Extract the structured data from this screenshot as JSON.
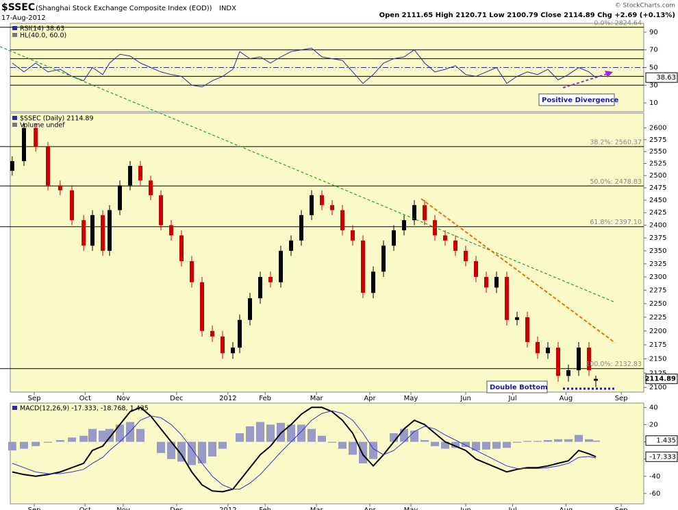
{
  "header": {
    "symbol": "$SSEC",
    "name": "(Shanghai Stock Exchange Composite Index (EOD))",
    "exchange": "INDX",
    "date": "17-Aug-2012",
    "quote": "Open 2111.65  High 2120.71  Low 2100.79  Close 2114.89  Chg +2.69 (+0.13%)",
    "copyright": "© StockCharts.com"
  },
  "chart_data": [
    {
      "type": "line",
      "legend": [
        "RSI(14) 38.63",
        "HL(40.0, 60.0)"
      ],
      "color": "#2a2a9a",
      "background": "#fafac8",
      "xlim": [
        8.51,
        21.46
      ],
      "ylim": [
        0,
        100
      ],
      "yticks": [
        10,
        30,
        50,
        70,
        90
      ],
      "levels": [
        30,
        40,
        60,
        70
      ],
      "center_level": 50,
      "annotations": [
        "Positive Divergence"
      ],
      "x": [
        8.55,
        8.79,
        9.03,
        9.28,
        9.53,
        9.77,
        10.01,
        10.19,
        10.4,
        10.54,
        10.75,
        10.96,
        11.17,
        11.38,
        11.59,
        11.8,
        12.01,
        12.22,
        12.43,
        12.64,
        12.85,
        13.06,
        13.2,
        13.41,
        13.62,
        13.83,
        14.04,
        14.25,
        14.46,
        14.67,
        14.88,
        15.09,
        15.3,
        15.51,
        15.72,
        15.93,
        16.14,
        16.35,
        16.56,
        16.77,
        16.98,
        17.19,
        17.4,
        17.61,
        17.82,
        18.03,
        18.24,
        18.45,
        18.66,
        18.87,
        19.08,
        19.29,
        19.5,
        19.71,
        19.92,
        20.13,
        20.34,
        20.48
      ],
      "values": [
        55,
        45,
        55,
        45,
        48,
        40,
        35,
        50,
        42,
        55,
        65,
        63,
        55,
        50,
        45,
        42,
        40,
        30,
        28,
        35,
        40,
        48,
        68,
        60,
        62,
        55,
        62,
        68,
        70,
        72,
        62,
        60,
        58,
        45,
        32,
        42,
        55,
        60,
        62,
        70,
        55,
        45,
        48,
        52,
        42,
        40,
        45,
        50,
        32,
        40,
        45,
        42,
        48,
        36,
        42,
        50,
        45,
        38.63
      ]
    },
    {
      "type": "candlestick",
      "legend": [
        "$SSEC (Daily) 2114.89",
        "Volume undef"
      ],
      "up_color": "#000000",
      "down_color": "#cc0000",
      "background": "#fafac8",
      "log": true,
      "xlim": [
        8.51,
        21.46
      ],
      "ylim": [
        2092,
        2632
      ],
      "yticks": [
        2100,
        2125,
        2150,
        2175,
        2200,
        2225,
        2250,
        2275,
        2300,
        2325,
        2350,
        2375,
        2400,
        2425,
        2450,
        2475,
        2500,
        2525,
        2550,
        2575,
        2600
      ],
      "xticks": [
        {
          "value": 9,
          "label": "Sep"
        },
        {
          "value": 10.04,
          "label": "Oct"
        },
        {
          "value": 10.82,
          "label": "Nov"
        },
        {
          "value": 11.91,
          "label": "Dec"
        },
        {
          "value": 12.96,
          "label": "2012"
        },
        {
          "value": 13.72,
          "label": "Feb"
        },
        {
          "value": 14.77,
          "label": "Mar"
        },
        {
          "value": 15.86,
          "label": "Apr"
        },
        {
          "value": 16.7,
          "label": "May"
        },
        {
          "value": 17.82,
          "label": "Jun"
        },
        {
          "value": 18.78,
          "label": "Jul"
        },
        {
          "value": 19.87,
          "label": "Aug"
        },
        {
          "value": 21.0,
          "label": "Sep"
        }
      ],
      "fib_levels": [
        {
          "value": 2824.64,
          "label": "0.0%: 2824.64"
        },
        {
          "value": 2560.37,
          "label": "38.2%: 2560.37"
        },
        {
          "value": 2478.83,
          "label": "50.0%: 2478.83"
        },
        {
          "value": 2397.1,
          "label": "61.8%: 2397.10"
        },
        {
          "value": 2132.83,
          "label": "100.0%: 2132.83"
        }
      ],
      "annotations": [
        "Double Bottom"
      ],
      "x": [
        8.55,
        8.79,
        9.03,
        9.28,
        9.53,
        9.77,
        10.01,
        10.19,
        10.4,
        10.54,
        10.75,
        10.96,
        11.17,
        11.38,
        11.59,
        11.8,
        12.01,
        12.22,
        12.43,
        12.64,
        12.85,
        13.06,
        13.2,
        13.41,
        13.62,
        13.83,
        14.04,
        14.25,
        14.46,
        14.67,
        14.88,
        15.09,
        15.3,
        15.51,
        15.72,
        15.93,
        16.14,
        16.35,
        16.56,
        16.77,
        16.98,
        17.19,
        17.4,
        17.61,
        17.82,
        18.03,
        18.24,
        18.45,
        18.66,
        18.87,
        19.08,
        19.29,
        19.5,
        19.71,
        19.92,
        20.13,
        20.34,
        20.48
      ],
      "open": [
        2510,
        2530,
        2600,
        2560,
        2480,
        2470,
        2410,
        2360,
        2420,
        2350,
        2430,
        2480,
        2520,
        2490,
        2460,
        2400,
        2380,
        2330,
        2290,
        2200,
        2190,
        2160,
        2170,
        2220,
        2260,
        2300,
        2290,
        2350,
        2370,
        2420,
        2460,
        2440,
        2430,
        2390,
        2370,
        2270,
        2310,
        2360,
        2390,
        2410,
        2440,
        2410,
        2380,
        2370,
        2350,
        2330,
        2300,
        2280,
        2300,
        2220,
        2225,
        2180,
        2160,
        2170,
        2120,
        2130,
        2170,
        2111.65
      ],
      "high": [
        2540,
        2610,
        2610,
        2570,
        2490,
        2480,
        2420,
        2430,
        2430,
        2440,
        2490,
        2530,
        2530,
        2500,
        2470,
        2410,
        2390,
        2340,
        2300,
        2210,
        2200,
        2180,
        2230,
        2270,
        2310,
        2310,
        2360,
        2380,
        2430,
        2470,
        2470,
        2450,
        2440,
        2400,
        2380,
        2320,
        2370,
        2400,
        2420,
        2450,
        2450,
        2420,
        2390,
        2380,
        2360,
        2340,
        2310,
        2310,
        2310,
        2235,
        2235,
        2190,
        2180,
        2180,
        2140,
        2180,
        2180,
        2120.71
      ],
      "low": [
        2500,
        2520,
        2550,
        2470,
        2460,
        2400,
        2350,
        2350,
        2340,
        2340,
        2420,
        2470,
        2480,
        2450,
        2390,
        2370,
        2320,
        2280,
        2190,
        2180,
        2150,
        2150,
        2160,
        2210,
        2250,
        2280,
        2280,
        2340,
        2360,
        2410,
        2430,
        2420,
        2380,
        2360,
        2260,
        2260,
        2300,
        2350,
        2380,
        2400,
        2400,
        2370,
        2360,
        2340,
        2320,
        2290,
        2270,
        2270,
        2210,
        2210,
        2170,
        2150,
        2150,
        2110,
        2110,
        2120,
        2120,
        2100.79
      ],
      "close": [
        2530,
        2600,
        2560,
        2480,
        2470,
        2410,
        2360,
        2420,
        2350,
        2430,
        2480,
        2520,
        2490,
        2460,
        2400,
        2380,
        2330,
        2290,
        2200,
        2190,
        2160,
        2170,
        2220,
        2260,
        2300,
        2290,
        2350,
        2370,
        2420,
        2460,
        2440,
        2430,
        2390,
        2370,
        2270,
        2310,
        2360,
        2390,
        2410,
        2440,
        2410,
        2380,
        2370,
        2350,
        2330,
        2300,
        2280,
        2300,
        2220,
        2225,
        2180,
        2160,
        2170,
        2120,
        2130,
        2170,
        2130,
        2114.89
      ]
    },
    {
      "type": "macd",
      "legend": [
        "MACD(12,26,9) -17.333, -18.768, 1.435"
      ],
      "background": "#fafac8",
      "xlim": [
        8.51,
        21.46
      ],
      "ylim": [
        -72,
        45
      ],
      "yticks": [
        -60,
        -40,
        -20,
        0,
        20,
        40
      ],
      "xticks": [
        {
          "value": 9,
          "label": "Sep"
        },
        {
          "value": 10.04,
          "label": "Oct"
        },
        {
          "value": 10.82,
          "label": "Nov"
        },
        {
          "value": 11.91,
          "label": "Dec"
        },
        {
          "value": 12.96,
          "label": "2012"
        },
        {
          "value": 13.72,
          "label": "Feb"
        },
        {
          "value": 14.77,
          "label": "Mar"
        },
        {
          "value": 15.86,
          "label": "Apr"
        },
        {
          "value": 16.7,
          "label": "May"
        },
        {
          "value": 17.82,
          "label": "Jun"
        },
        {
          "value": 18.78,
          "label": "Jul"
        },
        {
          "value": 19.87,
          "label": "Aug"
        },
        {
          "value": 21.0,
          "label": "Sep"
        }
      ],
      "x": [
        8.55,
        8.79,
        9.03,
        9.28,
        9.53,
        9.77,
        10.01,
        10.19,
        10.4,
        10.54,
        10.75,
        10.96,
        11.17,
        11.38,
        11.59,
        11.8,
        12.01,
        12.22,
        12.43,
        12.64,
        12.85,
        13.06,
        13.2,
        13.41,
        13.62,
        13.83,
        14.04,
        14.25,
        14.46,
        14.67,
        14.88,
        15.09,
        15.3,
        15.51,
        15.72,
        15.93,
        16.14,
        16.35,
        16.56,
        16.77,
        16.98,
        17.19,
        17.4,
        17.61,
        17.82,
        18.03,
        18.24,
        18.45,
        18.66,
        18.87,
        19.08,
        19.29,
        19.5,
        19.71,
        19.92,
        20.13,
        20.34,
        20.48
      ],
      "histogram": {
        "color": "#9a9ac8",
        "values": [
          -10,
          -8,
          -5,
          -1,
          2,
          5,
          7,
          15,
          13,
          15,
          20,
          23,
          15,
          0,
          -13,
          -20,
          -23,
          -27,
          -25,
          -17,
          -8,
          0,
          10,
          18,
          23,
          20,
          22,
          20,
          20,
          15,
          7,
          -1,
          -8,
          -15,
          -25,
          -20,
          0,
          10,
          15,
          13,
          2,
          -5,
          -8,
          -7,
          -6,
          -10,
          -9,
          -8,
          -7,
          -1,
          1,
          1,
          2,
          3,
          3,
          8,
          3,
          1.435
        ]
      },
      "series": [
        {
          "color": "#000000",
          "values": [
            -35,
            -38,
            -40,
            -38,
            -35,
            -30,
            -25,
            -10,
            -5,
            5,
            20,
            35,
            40,
            30,
            15,
            0,
            -15,
            -35,
            -50,
            -57,
            -58,
            -55,
            -45,
            -30,
            -15,
            -5,
            10,
            20,
            32,
            40,
            40,
            35,
            25,
            10,
            -15,
            -28,
            -15,
            0,
            15,
            25,
            20,
            10,
            0,
            -5,
            -10,
            -20,
            -25,
            -30,
            -35,
            -32,
            -30,
            -30,
            -28,
            -25,
            -22,
            -10,
            -14,
            -17.333
          ]
        },
        {
          "color": "#3333cc",
          "values": [
            -25,
            -30,
            -35,
            -37,
            -37,
            -35,
            -32,
            -25,
            -18,
            -10,
            0,
            12,
            25,
            30,
            28,
            20,
            8,
            -8,
            -25,
            -40,
            -50,
            -55,
            -55,
            -48,
            -38,
            -25,
            -12,
            0,
            12,
            25,
            33,
            36,
            33,
            25,
            10,
            -8,
            -15,
            -10,
            0,
            12,
            18,
            15,
            8,
            2,
            -4,
            -10,
            -16,
            -22,
            -28,
            -31,
            -31,
            -31,
            -30,
            -28,
            -25,
            -18,
            -17,
            -18.768
          ]
        }
      ]
    }
  ]
}
